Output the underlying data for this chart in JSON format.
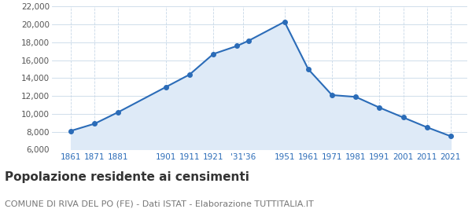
{
  "years": [
    1861,
    1871,
    1881,
    1901,
    1911,
    1921,
    1931,
    1936,
    1951,
    1961,
    1971,
    1981,
    1991,
    2001,
    2011,
    2021
  ],
  "population": [
    8100,
    8900,
    10200,
    13000,
    14400,
    16700,
    17600,
    18200,
    20300,
    15000,
    12100,
    11900,
    10700,
    9600,
    8500,
    7500
  ],
  "line_color": "#2b6cb8",
  "fill_color": "#deeaf7",
  "marker_color": "#2b6cb8",
  "bg_color": "#ffffff",
  "grid_color": "#c8d8e8",
  "title": "Popolazione residente ai censimenti",
  "subtitle": "COMUNE DI RIVA DEL PO (FE) - Dati ISTAT - Elaborazione TUTTITALIA.IT",
  "ylim": [
    6000,
    22000
  ],
  "yticks": [
    6000,
    8000,
    10000,
    12000,
    14000,
    16000,
    18000,
    20000,
    22000
  ],
  "title_fontsize": 11,
  "subtitle_fontsize": 8,
  "axis_tick_color": "#2b6cb8",
  "tick_fontsize": 7.5,
  "ylabel_color": "#555555",
  "xlim_left": 1853,
  "xlim_right": 2028
}
